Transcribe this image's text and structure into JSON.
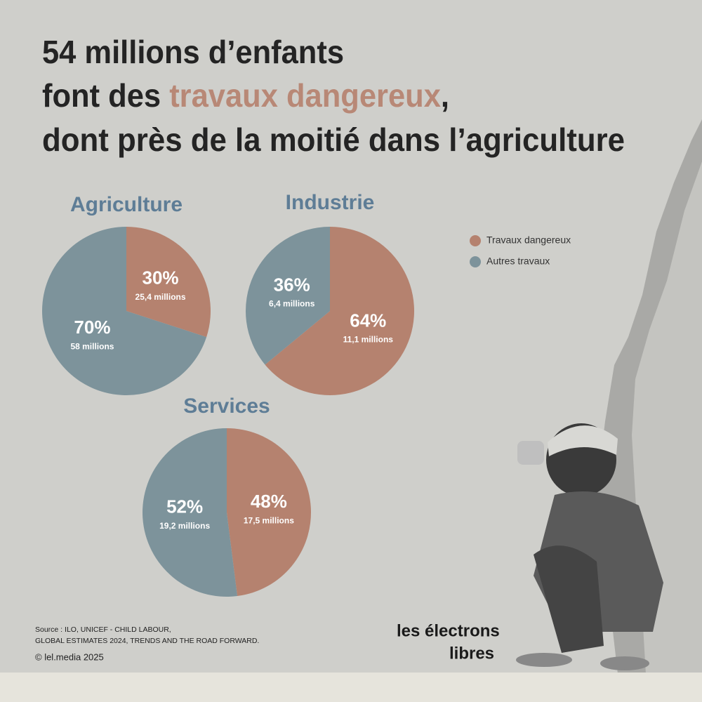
{
  "header": {
    "title_lines": [
      {
        "before": "54 millions d’enfants"
      },
      {
        "before": "font des ",
        "highlight": "travaux dangereux",
        "after": ","
      },
      {
        "before": "dont près de la moitié dans l’agriculture"
      }
    ],
    "highlight_color": "#b88876"
  },
  "chart_data": [
    {
      "type": "pie",
      "title": "Agriculture",
      "categories": [
        "Travaux dangereux",
        "Autres travaux"
      ],
      "values": [
        30,
        70
      ],
      "value_labels": [
        "30%",
        "70%"
      ],
      "sub_labels": [
        "25,4 millions",
        "58 millions"
      ],
      "colors": [
        "#b5826f",
        "#7d939b"
      ]
    },
    {
      "type": "pie",
      "title": "Industrie",
      "categories": [
        "Travaux dangereux",
        "Autres travaux"
      ],
      "values": [
        64,
        36
      ],
      "value_labels": [
        "64%",
        "36%"
      ],
      "sub_labels": [
        "11,1 millions",
        "6,4 millions"
      ],
      "colors": [
        "#b5826f",
        "#7d939b"
      ]
    },
    {
      "type": "pie",
      "title": "Services",
      "categories": [
        "Travaux dangereux",
        "Autres travaux"
      ],
      "values": [
        48,
        52
      ],
      "value_labels": [
        "48%",
        "52%"
      ],
      "sub_labels": [
        "17,5 millions",
        "19,2 millions"
      ],
      "colors": [
        "#b5826f",
        "#7d939b"
      ]
    }
  ],
  "footer": {
    "source_lines": [
      "Source : ILO, UNICEF - CHILD LABOUR,",
      "GLOBAL ESTIMATES 2024, TRENDS AND THE ROAD FORWARD."
    ],
    "copyright": "© lel.media 2025",
    "logo_lines": [
      "les électrons",
      "libres"
    ]
  }
}
